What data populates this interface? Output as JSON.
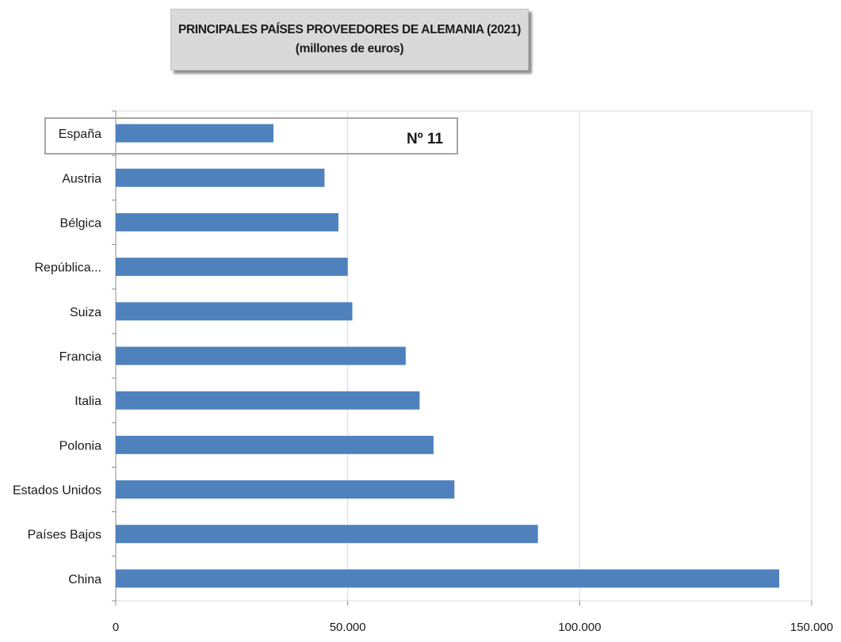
{
  "chart_data": {
    "type": "bar",
    "orientation": "horizontal",
    "title": "PRINCIPALES PAÍSES PROVEEDORES DE ALEMANIA (2021)",
    "subtitle": "(millones de euros)",
    "categories": [
      "España",
      "Austria",
      "Bélgica",
      "República...",
      "Suiza",
      "Francia",
      "Italia",
      "Polonia",
      "Estados Unidos",
      "Países Bajos",
      "China"
    ],
    "values": [
      34000,
      45000,
      48000,
      50000,
      51000,
      62500,
      65500,
      68500,
      73000,
      91000,
      143000
    ],
    "xlim": [
      0,
      150000
    ],
    "xticks": [
      0,
      50000,
      100000,
      150000
    ],
    "xtick_labels": [
      "0",
      "50.000",
      "100.000",
      "150.000"
    ],
    "bar_color": "#4f81bd",
    "grid": true,
    "annotation": {
      "text": "Nº  11",
      "highlight_category": "España"
    }
  }
}
